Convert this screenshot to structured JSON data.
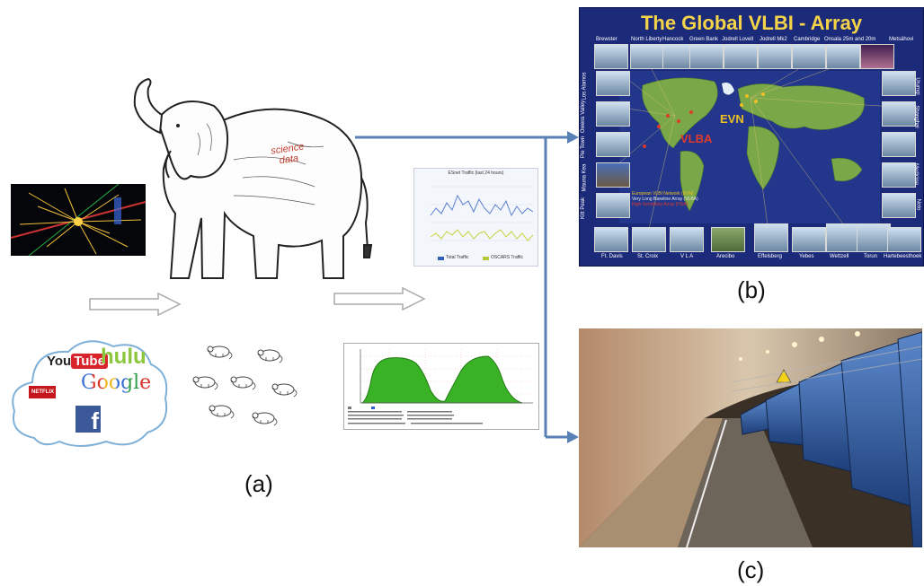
{
  "labels": {
    "a": "(a)",
    "b": "(b)",
    "c": "(c)"
  },
  "elephant": {
    "text_line1": "science",
    "text_line2": "data"
  },
  "logos": {
    "youtube_you": "You",
    "youtube_tube": "Tube",
    "hulu": "hulu",
    "google": "Google",
    "netflix": "NETFLIX",
    "facebook": "f"
  },
  "traffic_graph": {
    "title": "ESnet Traffic (last 24 hours)",
    "legend": [
      "Total Traffic",
      "OSCARS Traffic"
    ]
  },
  "vlbi": {
    "title": "The Global VLBI - Array",
    "top_sites": [
      "Brewster",
      "North Liberty",
      "Hancock",
      "Green Bank",
      "Jodrell Lovell",
      "Jodrell Mk2",
      "Cambridge",
      "Onsala 25m and 20m",
      "Metsähovi"
    ],
    "left_sites": [
      "Los Alamos",
      "Owens Valley",
      "Pie Town",
      "Mauna Kea",
      "Kitt Peak"
    ],
    "bottom_sites": [
      "Ft. Davis",
      "St. Croix",
      "V L A",
      "Arecibo",
      "Effelsberg",
      "Yebes",
      "Wettzell",
      "Torun",
      "Hartebeesthoek"
    ],
    "right_sites": [
      "Medicina",
      "Noto",
      "Shanghai",
      "Urumqi"
    ],
    "map_labels": {
      "evn": "EVN",
      "vlba": "VLBA"
    },
    "legend": [
      "European VLBI Network (EVN)",
      "Very Long Baseline Array (VLBA)",
      "High Sensitivity Array (HSA)"
    ],
    "colors": {
      "bg": "#1c2a7a",
      "title": "#f5d547",
      "evn": "#f0c020",
      "vlba": "#e03a2a"
    }
  }
}
